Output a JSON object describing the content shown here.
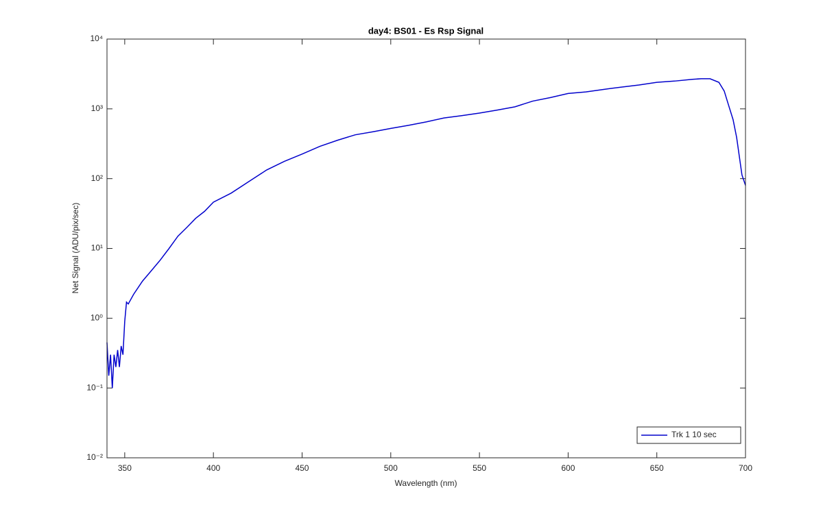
{
  "chart_data": {
    "type": "line",
    "title": "day4: BS01 - Es Rsp Signal",
    "x_label": "Wavelength (nm)",
    "y_label": "Net Signal (ADU/pix/sec)",
    "log_y": true,
    "legend_position": "lower right",
    "xlim": [
      340,
      700
    ],
    "xticks": [
      350,
      400,
      450,
      500,
      550,
      600,
      650,
      700
    ],
    "ylim": [
      0.01,
      10000
    ],
    "yticks": [
      {
        "value": 0.01,
        "label": "10⁻²"
      },
      {
        "value": 0.1,
        "label": "10⁻¹"
      },
      {
        "value": 1,
        "label": "10⁰"
      },
      {
        "value": 10,
        "label": "10¹"
      },
      {
        "value": 100,
        "label": "10²"
      },
      {
        "value": 1000,
        "label": "10³"
      },
      {
        "value": 10000,
        "label": "10⁴"
      }
    ],
    "x": [
      340,
      341,
      342,
      343,
      344,
      345,
      346,
      347,
      348,
      349,
      350,
      351,
      352,
      355,
      360,
      365,
      370,
      375,
      380,
      385,
      390,
      395,
      400,
      410,
      420,
      430,
      440,
      450,
      460,
      470,
      480,
      490,
      500,
      510,
      520,
      530,
      540,
      550,
      560,
      570,
      580,
      590,
      600,
      610,
      620,
      630,
      640,
      650,
      660,
      670,
      675,
      680,
      685,
      688,
      690,
      693,
      695,
      698,
      700
    ],
    "series": [
      {
        "name": "Trk 1  10 sec",
        "color": "#0000cc",
        "values": [
          0.45,
          0.15,
          0.3,
          0.1,
          0.3,
          0.2,
          0.35,
          0.2,
          0.4,
          0.3,
          0.9,
          1.7,
          1.6,
          2.2,
          3.4,
          4.8,
          6.8,
          10,
          15,
          20,
          27,
          34,
          46,
          62,
          91,
          133,
          177,
          225,
          290,
          355,
          425,
          470,
          525,
          580,
          650,
          740,
          800,
          870,
          960,
          1070,
          1290,
          1450,
          1660,
          1750,
          1900,
          2050,
          2200,
          2400,
          2500,
          2650,
          2700,
          2700,
          2400,
          1800,
          1230,
          700,
          390,
          113,
          80
        ]
      }
    ]
  }
}
